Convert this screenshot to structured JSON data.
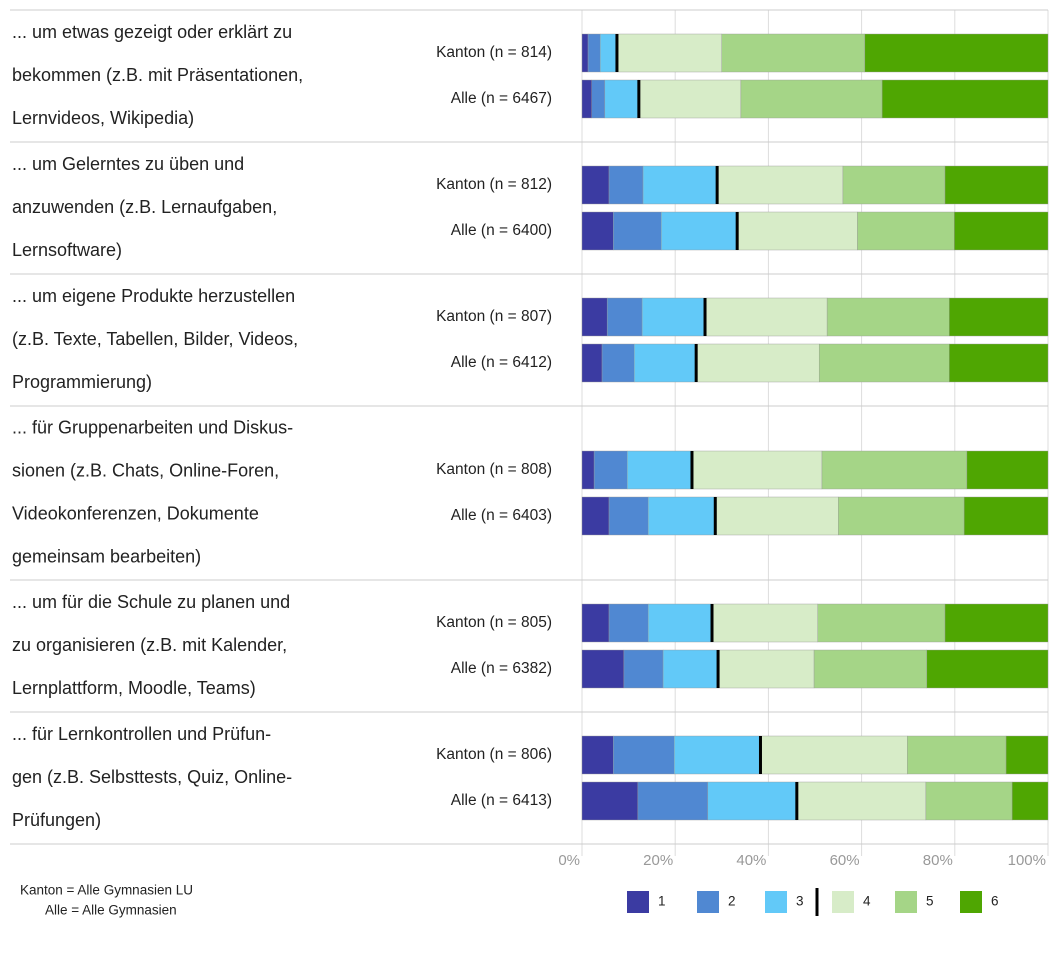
{
  "chart_data": {
    "type": "stacked_barh",
    "groups": [
      [
        "... um etwas gezeigt oder erklärt zu",
        "bekommen (z.B. mit Präsentationen,",
        "Lernvideos, Wikipedia)"
      ],
      [
        "... um Gelerntes zu üben und",
        "anzuwenden (z.B. Lernaufgaben,",
        "Lernsoftware)"
      ],
      [
        "... um eigene Produkte herzustellen",
        "(z.B. Texte, Tabellen, Bilder, Videos,",
        "Programmierung)"
      ],
      [
        "... für Gruppenarbeiten und Diskus-",
        "sionen (z.B. Chats, Online-Foren,",
        "Videokonferenzen, Dokumente",
        "gemeinsam bearbeiten)"
      ],
      [
        "... um für die Schule zu planen und",
        "zu organisieren (z.B. mit Kalender,",
        "Lernplattform, Moodle, Teams)"
      ],
      [
        "... für Lernkontrollen und Prüfun-",
        "gen (z.B. Selbsttests, Quiz, Online-",
        "Prüfungen)"
      ]
    ],
    "categories": [
      "Kanton (n = 814)",
      "Alle (n = 6467)",
      "Kanton (n = 812)",
      "Alle (n = 6400)",
      "Kanton (n = 807)",
      "Alle (n = 6412)",
      "Kanton (n = 808)",
      "Alle (n = 6403)",
      "Kanton (n = 805)",
      "Alle (n = 6382)",
      "Kanton (n = 806)",
      "Alle (n = 6413)"
    ],
    "series": [
      {
        "name": "1",
        "color": "#3b3ba2",
        "values": [
          1.3,
          2.1,
          5.8,
          6.7,
          5.4,
          4.3,
          2.6,
          5.8,
          5.8,
          9.0,
          6.7,
          12.0
        ]
      },
      {
        "name": "2",
        "color": "#5088d2",
        "values": [
          2.6,
          2.8,
          7.3,
          10.3,
          7.5,
          6.9,
          7.1,
          8.4,
          8.4,
          8.4,
          13.1,
          15.0
        ]
      },
      {
        "name": "3",
        "color": "#62c9f8",
        "values": [
          3.6,
          7.3,
          15.9,
          16.3,
          13.5,
          13.3,
          13.9,
          14.4,
          13.7,
          11.8,
          18.5,
          19.1
        ]
      },
      {
        "name": "4",
        "color": "#d7ecc8",
        "values": [
          22.5,
          21.9,
          27.0,
          25.8,
          26.2,
          26.4,
          27.9,
          26.4,
          22.7,
          20.6,
          31.5,
          27.7
        ]
      },
      {
        "name": "5",
        "color": "#a5d587",
        "values": [
          30.7,
          30.3,
          21.9,
          20.8,
          26.2,
          27.9,
          31.1,
          27.0,
          27.3,
          24.2,
          21.2,
          18.5
        ]
      },
      {
        "name": "6",
        "color": "#4fa602",
        "values": [
          39.3,
          35.6,
          22.1,
          20.1,
          21.2,
          21.2,
          17.4,
          18.0,
          22.1,
          26.0,
          9.0,
          7.7
        ]
      }
    ],
    "xlim": [
      0,
      100
    ],
    "xticks": [
      {
        "value": 0,
        "label": "0%"
      },
      {
        "value": 20,
        "label": "20%"
      },
      {
        "value": 40,
        "label": "40%"
      },
      {
        "value": 60,
        "label": "60%"
      },
      {
        "value": 80,
        "label": "80%"
      },
      {
        "value": 100,
        "label": "100%"
      }
    ],
    "notes": [
      "Kanton = Alle Gymnasien LU",
      "Alle = Alle Gymnasien"
    ]
  }
}
